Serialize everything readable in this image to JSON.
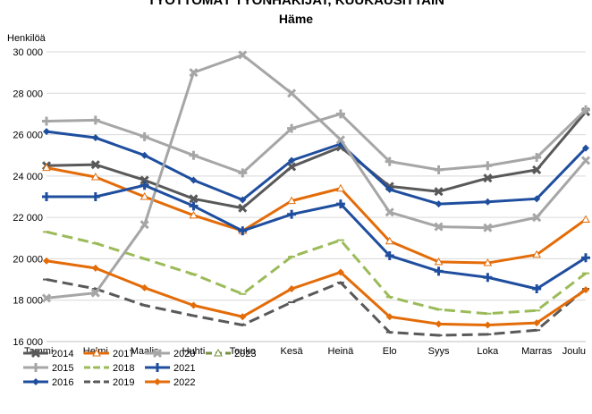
{
  "chart_data": {
    "type": "line",
    "title": "TYÖTTÖMÄT TYÖNHAKIJAT, KUUKAUSITTAIN",
    "subtitle": "Häme",
    "ylabel": "Henkilöä",
    "xlabel": "",
    "ylim": [
      16000,
      30000
    ],
    "yticks": [
      16000,
      18000,
      20000,
      22000,
      24000,
      26000,
      28000,
      30000
    ],
    "ytick_labels": [
      "16 000",
      "18 000",
      "20 000",
      "22 000",
      "24 000",
      "26 000",
      "28 000",
      "30 000"
    ],
    "categories": [
      "Tammi",
      "Helmi",
      "Maalis",
      "Huhti",
      "Touko",
      "Kesä",
      "Heinä",
      "Elo",
      "Syys",
      "Loka",
      "Marras",
      "Joulu"
    ],
    "grid": true,
    "legend_position": "bottom-left",
    "series": [
      {
        "name": "2014",
        "color": "#595959",
        "dash": "solid",
        "marker": "x",
        "values": [
          24500,
          24550,
          23800,
          22900,
          22450,
          24450,
          25400,
          23500,
          23250,
          23900,
          24300,
          27100
        ]
      },
      {
        "name": "2015",
        "color": "#a6a6a6",
        "dash": "solid",
        "marker": "plus",
        "values": [
          26650,
          26700,
          25900,
          25000,
          24150,
          26300,
          27000,
          24700,
          24300,
          24500,
          24900,
          27200
        ]
      },
      {
        "name": "2016",
        "color": "#1f4e9e",
        "dash": "solid",
        "marker": "diamond",
        "values": [
          26150,
          25850,
          25000,
          23800,
          22850,
          24750,
          25550,
          23350,
          22650,
          22750,
          22900,
          25350
        ]
      },
      {
        "name": "2017",
        "color": "#e36c09",
        "dash": "solid",
        "marker": "triangle",
        "values": [
          24400,
          23950,
          23000,
          22100,
          21350,
          22800,
          23400,
          20850,
          19850,
          19800,
          20200,
          21900
        ]
      },
      {
        "name": "2018",
        "color": "#9bbb59",
        "dash": "dashed",
        "marker": "dash",
        "values": [
          21300,
          20750,
          20000,
          19250,
          18300,
          20100,
          20900,
          18150,
          17550,
          17350,
          17500,
          19300
        ]
      },
      {
        "name": "2019",
        "color": "#595959",
        "dash": "dashed",
        "marker": "dash",
        "values": [
          19000,
          18550,
          17750,
          17250,
          16800,
          17900,
          18850,
          16450,
          16300,
          16350,
          16550,
          18550
        ]
      },
      {
        "name": "2020",
        "color": "#a6a6a6",
        "dash": "solid",
        "marker": "x",
        "values": [
          18100,
          18350,
          21650,
          29000,
          29850,
          28000,
          25750,
          22250,
          21550,
          21500,
          22000,
          24750
        ]
      },
      {
        "name": "2021",
        "color": "#1f4e9e",
        "dash": "solid",
        "marker": "plus",
        "values": [
          23000,
          23000,
          23550,
          22550,
          21350,
          22150,
          22650,
          20150,
          19400,
          19100,
          18550,
          20050
        ]
      },
      {
        "name": "2022",
        "color": "#e36c09",
        "dash": "solid",
        "marker": "diamond",
        "values": [
          19900,
          19550,
          18600,
          17750,
          17200,
          18550,
          19350,
          17200,
          16850,
          16800,
          16900,
          18500
        ]
      },
      {
        "name": "2023",
        "color": "#76923c",
        "dash": "dashed",
        "marker": "triangle",
        "values": [
          null,
          null,
          null,
          null,
          null,
          null,
          null,
          null,
          null,
          null,
          null,
          null
        ]
      }
    ]
  }
}
